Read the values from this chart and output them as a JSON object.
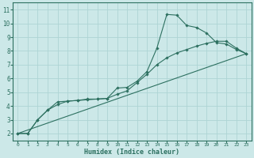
{
  "xlabel": "Humidex (Indice chaleur)",
  "bg_color": "#cce8e8",
  "grid_color": "#aed4d4",
  "line_color": "#2d7060",
  "xlim": [
    -0.5,
    23.5
  ],
  "ylim": [
    1.5,
    11.5
  ],
  "xticks": [
    0,
    1,
    2,
    3,
    4,
    5,
    6,
    7,
    8,
    9,
    10,
    11,
    12,
    13,
    14,
    15,
    16,
    17,
    18,
    19,
    20,
    21,
    22,
    23
  ],
  "yticks": [
    2,
    3,
    4,
    5,
    6,
    7,
    8,
    9,
    10,
    11
  ],
  "line1_x": [
    0,
    1,
    2,
    3,
    4,
    5,
    6,
    7,
    8,
    9,
    10,
    11,
    12,
    13,
    14,
    15,
    16,
    17,
    18,
    19,
    20,
    21,
    22,
    23
  ],
  "line1_y": [
    2.0,
    2.0,
    3.0,
    3.7,
    4.3,
    4.35,
    4.4,
    4.45,
    4.5,
    4.55,
    5.3,
    5.35,
    5.8,
    6.5,
    8.2,
    10.65,
    10.6,
    9.85,
    9.7,
    9.3,
    8.6,
    8.5,
    8.1,
    7.8
  ],
  "line2_x": [
    0,
    1,
    2,
    3,
    4,
    5,
    6,
    7,
    8,
    9,
    10,
    11,
    12,
    13,
    14,
    15,
    16,
    17,
    18,
    19,
    20,
    21,
    22,
    23
  ],
  "line2_y": [
    2.0,
    2.0,
    3.0,
    3.7,
    4.1,
    4.35,
    4.4,
    4.5,
    4.5,
    4.55,
    4.85,
    5.1,
    5.7,
    6.3,
    7.0,
    7.5,
    7.85,
    8.1,
    8.35,
    8.55,
    8.7,
    8.7,
    8.2,
    7.8
  ],
  "line3_x": [
    0,
    23
  ],
  "line3_y": [
    2.0,
    7.8
  ]
}
